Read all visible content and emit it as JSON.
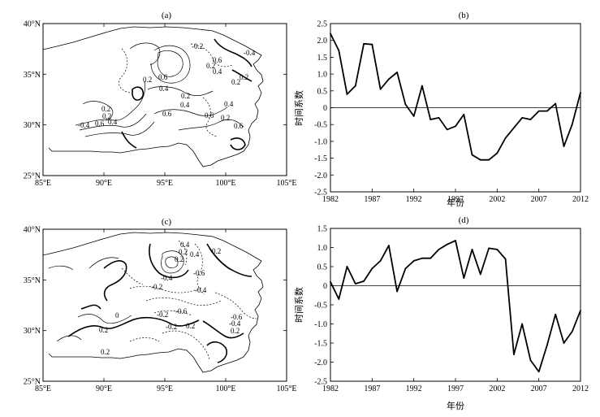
{
  "figure": {
    "background": "#ffffff",
    "line_color": "#000000"
  },
  "chart_data": [
    {
      "panel": "(a)",
      "type": "contour-map",
      "x_ticks": [
        "85°E",
        "90°E",
        "95°E",
        "100°E",
        "105°E"
      ],
      "y_ticks": [
        "25°N",
        "30°N",
        "35°N",
        "40°N"
      ],
      "xlim": [
        85,
        105
      ],
      "ylim": [
        25,
        40
      ],
      "contour_labels": [
        "-0.2",
        "-0.4",
        "0.2",
        "0.6",
        "0.4",
        "0.2",
        "0.4",
        "0.2",
        "0.2",
        "0.4",
        "0.6",
        "0.2",
        "-0.4",
        "0.6",
        "0.4",
        "0.6",
        "0.2",
        "0.6",
        "0.2",
        "0.4",
        "0.6",
        "0.2"
      ]
    },
    {
      "panel": "(b)",
      "type": "line",
      "ylabel": "时间系数",
      "xlabel": "年份",
      "x_ticks": [
        "1982",
        "1987",
        "1992",
        "1997",
        "2002",
        "2007",
        "2012"
      ],
      "y_ticks": [
        "2.5",
        "2.0",
        "1.5",
        "1.0",
        "0.5",
        "0",
        "-0.5",
        "-1.0",
        "-1.5",
        "-2.0",
        "-2.5"
      ],
      "xlim": [
        1982,
        2012
      ],
      "ylim": [
        -2.5,
        2.5
      ],
      "zero_line": true,
      "x": [
        1982,
        1983,
        1984,
        1985,
        1986,
        1987,
        1988,
        1989,
        1990,
        1991,
        1992,
        1993,
        1994,
        1995,
        1996,
        1997,
        1998,
        1999,
        2000,
        2001,
        2002,
        2003,
        2004,
        2005,
        2006,
        2007,
        2008,
        2009,
        2010,
        2011,
        2012
      ],
      "values": [
        2.2,
        1.7,
        0.4,
        0.65,
        1.9,
        1.88,
        0.55,
        0.85,
        1.05,
        0.1,
        -0.25,
        0.65,
        -0.35,
        -0.3,
        -0.65,
        -0.55,
        -0.2,
        -1.4,
        -1.55,
        -1.55,
        -1.35,
        -0.9,
        -0.6,
        -0.3,
        -0.35,
        -0.1,
        -0.1,
        0.12,
        -1.15,
        -0.5,
        0.45
      ]
    },
    {
      "panel": "(c)",
      "type": "contour-map",
      "x_ticks": [
        "85°E",
        "90°E",
        "95°E",
        "100°E",
        "105°E"
      ],
      "y_ticks": [
        "25°N",
        "30°N",
        "35°N",
        "40°N"
      ],
      "xlim": [
        85,
        105
      ],
      "ylim": [
        25,
        40
      ],
      "contour_labels": [
        "0.4",
        "0.2",
        "-0.4",
        "0.2",
        "0.2",
        "0.4",
        "-0.6",
        "-0.2",
        "-0.4",
        "0",
        "-0.2",
        "-0.6",
        "-0.2",
        "-0.6",
        "-0.4",
        "0.2",
        "0.2",
        "0.2",
        "0.2"
      ]
    },
    {
      "panel": "(d)",
      "type": "line",
      "ylabel": "时间系数",
      "xlabel": "年份",
      "x_ticks": [
        "1982",
        "1987",
        "1992",
        "1997",
        "2002",
        "2007",
        "2012"
      ],
      "y_ticks": [
        "1.5",
        "1.0",
        "0.5",
        "0",
        "-0.5",
        "-1.0",
        "-1.5",
        "-2.0",
        "-2.5"
      ],
      "xlim": [
        1982,
        2012
      ],
      "ylim": [
        -2.5,
        1.5
      ],
      "zero_line": true,
      "x": [
        1982,
        1983,
        1984,
        1985,
        1986,
        1987,
        1988,
        1989,
        1990,
        1991,
        1992,
        1993,
        1994,
        1995,
        1996,
        1997,
        1998,
        1999,
        2000,
        2001,
        2002,
        2003,
        2004,
        2005,
        2006,
        2007,
        2008,
        2009,
        2010,
        2011,
        2012
      ],
      "values": [
        0.1,
        -0.35,
        0.5,
        0.05,
        0.12,
        0.45,
        0.65,
        1.05,
        -0.15,
        0.45,
        0.65,
        0.72,
        0.72,
        0.95,
        1.08,
        1.18,
        0.2,
        0.95,
        0.3,
        0.98,
        0.95,
        0.7,
        -1.8,
        -1.0,
        -1.95,
        -2.25,
        -1.55,
        -0.75,
        -1.5,
        -1.2,
        -0.65
      ]
    }
  ]
}
